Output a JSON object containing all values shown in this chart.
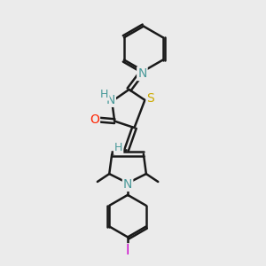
{
  "bg_color": "#ebebeb",
  "line_color": "#1a1a1a",
  "bond_width": 1.8,
  "atom_colors": {
    "N": "#4a9a9a",
    "O": "#ff2200",
    "S": "#ccaa00",
    "I": "#cc00cc",
    "H": "#4a9a9a",
    "C": "#1a1a1a"
  },
  "font_size": 9
}
